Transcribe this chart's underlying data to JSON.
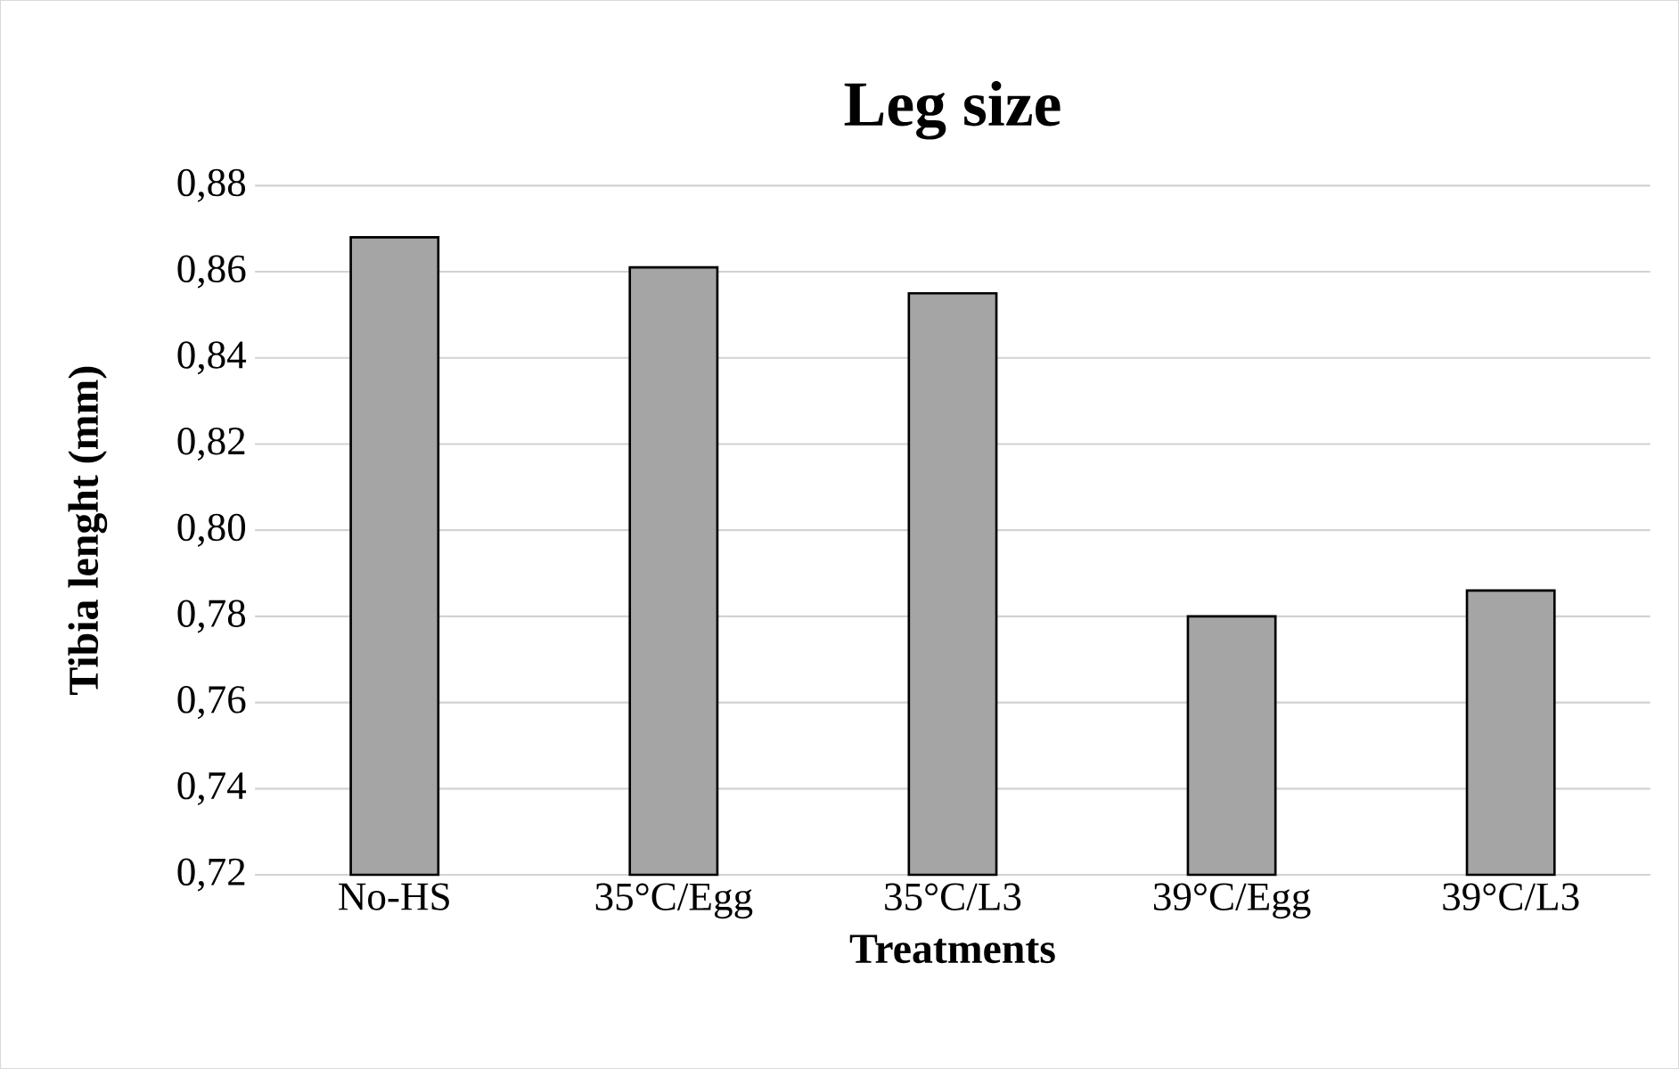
{
  "chart_data": {
    "type": "bar",
    "title": "Leg size",
    "xlabel": "Treatments",
    "ylabel": "Tibia lenght (mm)",
    "categories": [
      "No-HS",
      "35°C/Egg",
      "35°C/L3",
      "39°C/Egg",
      "39°C/L3"
    ],
    "values": [
      0.868,
      0.861,
      0.855,
      0.78,
      0.786
    ],
    "color": "#a5a5a5",
    "ylim": [
      0.72,
      0.88
    ],
    "yticks": [
      {
        "value": 0.72,
        "label": "0,72"
      },
      {
        "value": 0.74,
        "label": "0,74"
      },
      {
        "value": 0.76,
        "label": "0,76"
      },
      {
        "value": 0.78,
        "label": "0,78"
      },
      {
        "value": 0.8,
        "label": "0,80"
      },
      {
        "value": 0.82,
        "label": "0,82"
      },
      {
        "value": 0.84,
        "label": "0,84"
      },
      {
        "value": 0.86,
        "label": "0,86"
      },
      {
        "value": 0.88,
        "label": "0,88"
      }
    ],
    "grid": "y"
  }
}
